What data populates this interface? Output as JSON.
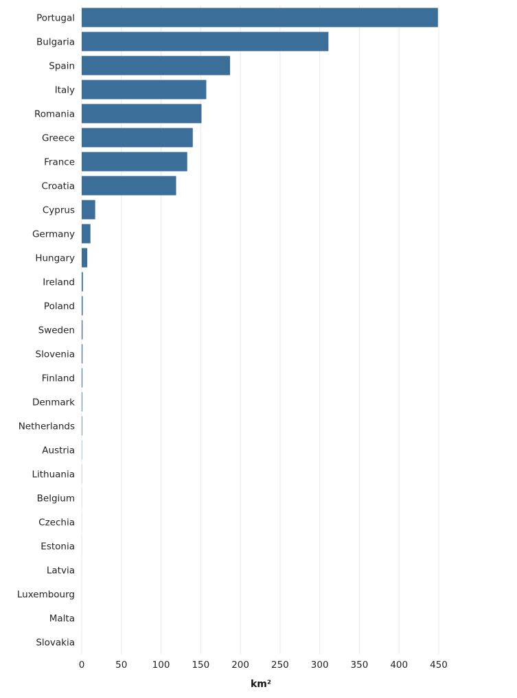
{
  "chart_data": {
    "type": "bar",
    "orientation": "horizontal",
    "title": "",
    "xlabel": "km²",
    "ylabel": "",
    "xlim": [
      0,
      450
    ],
    "xticks": [
      0,
      50,
      100,
      150,
      200,
      250,
      300,
      350,
      400,
      450
    ],
    "grid": "vertical",
    "bar_color": "#3b6e98",
    "categories": [
      "Portugal",
      "Bulgaria",
      "Spain",
      "Italy",
      "Romania",
      "Greece",
      "France",
      "Croatia",
      "Cyprus",
      "Germany",
      "Hungary",
      "Ireland",
      "Poland",
      "Sweden",
      "Slovenia",
      "Finland",
      "Denmark",
      "Netherlands",
      "Austria",
      "Lithuania",
      "Belgium",
      "Czechia",
      "Estonia",
      "Latvia",
      "Luxembourg",
      "Malta",
      "Slovakia"
    ],
    "values": [
      449,
      311,
      187,
      157,
      151,
      140,
      133,
      119,
      17,
      11,
      7,
      1.5,
      1.3,
      1.1,
      1,
      0.9,
      0.7,
      0.6,
      0.3,
      0.2,
      0.1,
      0.05,
      0.05,
      0.03,
      0.02,
      0.01,
      0.01
    ]
  }
}
